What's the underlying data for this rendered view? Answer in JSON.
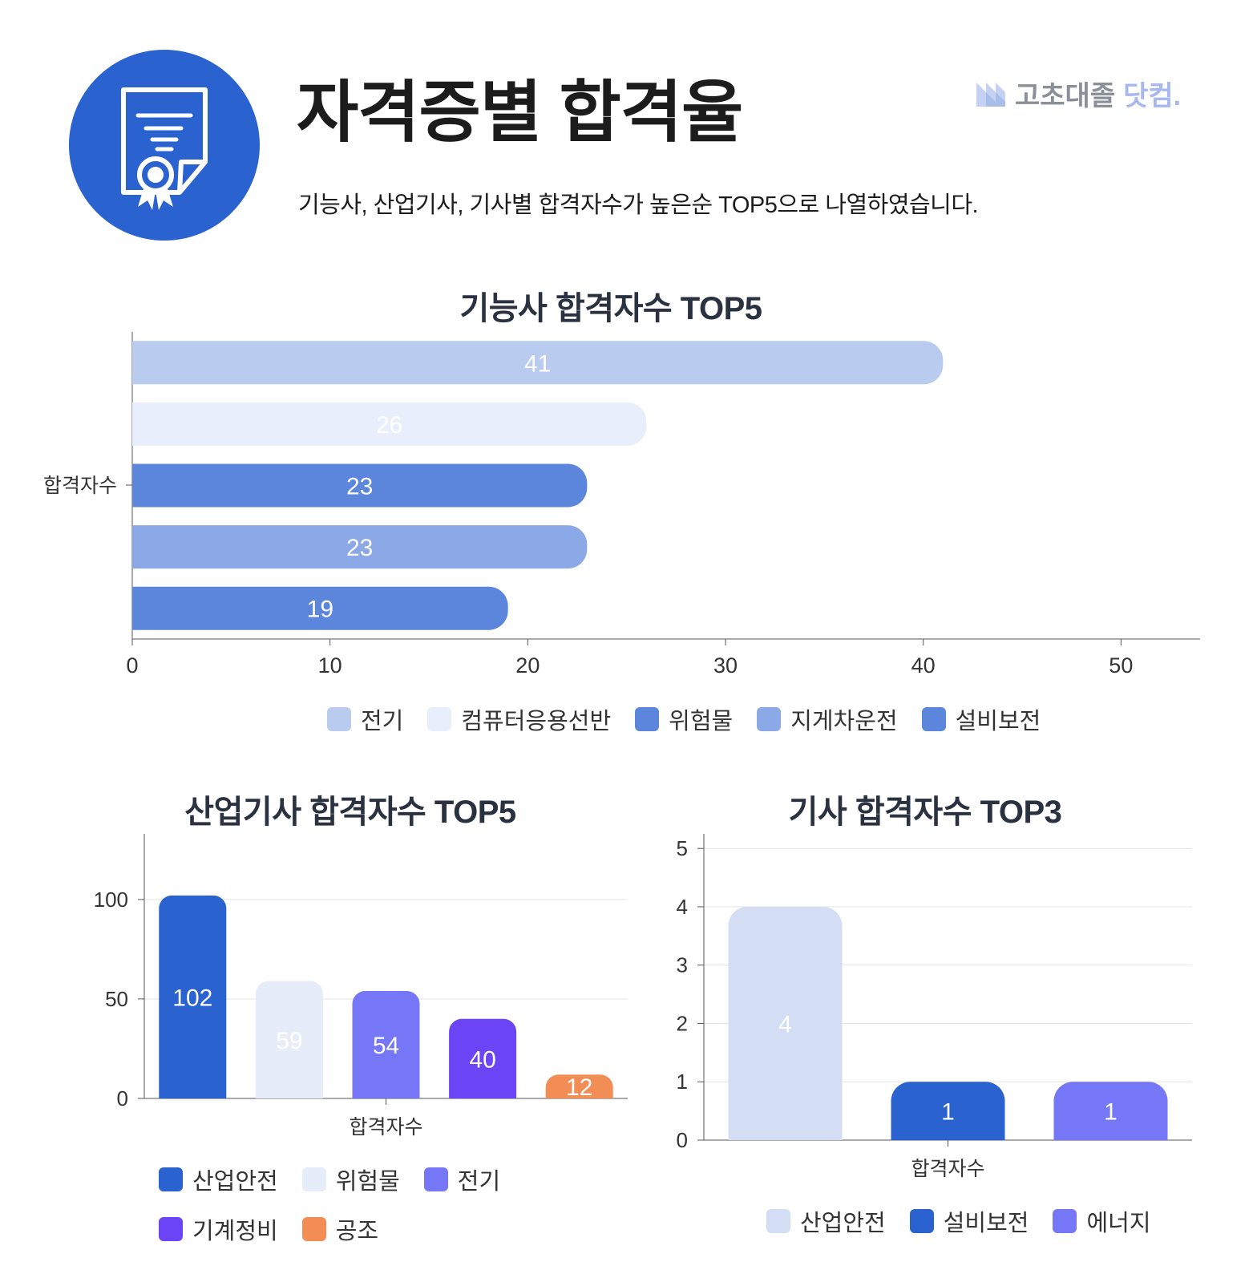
{
  "header": {
    "title": "자격증별 합격율",
    "subtitle": "기능사, 산업기사, 기사별 합격자수가 높은순 TOP5으로 나열하였습니다.",
    "icon": "certificate-icon",
    "brand": {
      "part1": "고초대졸",
      "part2": "닷컴."
    }
  },
  "chart_data": [
    {
      "type": "bar",
      "orientation": "horizontal",
      "title": "기능사 합격자수 TOP5",
      "ylabel": "합격자수",
      "xlim": [
        0,
        54
      ],
      "x_ticks": [
        "0",
        "10",
        "20",
        "30",
        "40",
        "50"
      ],
      "series": [
        {
          "name": "전기",
          "values": [
            41
          ],
          "color": "#b9cbee"
        },
        {
          "name": "컴퓨터응용선반",
          "values": [
            26
          ],
          "color": "#e8eefb"
        },
        {
          "name": "위험물",
          "values": [
            23
          ],
          "color": "#5b86dc"
        },
        {
          "name": "지게차운전",
          "values": [
            23
          ],
          "color": "#8aa9e6"
        },
        {
          "name": "설비보전",
          "values": [
            19
          ],
          "color": "#5b86dc"
        }
      ],
      "legend_position": "bottom"
    },
    {
      "type": "bar",
      "orientation": "vertical",
      "title": "산업기사 합격자수 TOP5",
      "xlabel": "합격자수",
      "ylim": [
        0,
        133
      ],
      "y_ticks": [
        "0",
        "50",
        "100"
      ],
      "series": [
        {
          "name": "산업안전",
          "values": [
            102
          ],
          "color": "#2a62cf"
        },
        {
          "name": "위험물",
          "values": [
            59
          ],
          "color": "#e6ecf8"
        },
        {
          "name": "전기",
          "values": [
            54
          ],
          "color": "#7677f6"
        },
        {
          "name": "기계정비",
          "values": [
            40
          ],
          "color": "#6a44f5"
        },
        {
          "name": "공조",
          "values": [
            12
          ],
          "color": "#f28e55"
        }
      ],
      "legend_position": "bottom"
    },
    {
      "type": "bar",
      "orientation": "vertical",
      "title": "기사 합격자수 TOP3",
      "xlabel": "합격자수",
      "ylim": [
        0,
        5.25
      ],
      "y_ticks": [
        "0",
        "1",
        "2",
        "3",
        "4",
        "5"
      ],
      "series": [
        {
          "name": "산업안전",
          "values": [
            4
          ],
          "color": "#d3ddf3"
        },
        {
          "name": "설비보전",
          "values": [
            1
          ],
          "color": "#2a62cf"
        },
        {
          "name": "에너지",
          "values": [
            1
          ],
          "color": "#7677f6"
        }
      ],
      "legend_position": "bottom"
    }
  ]
}
